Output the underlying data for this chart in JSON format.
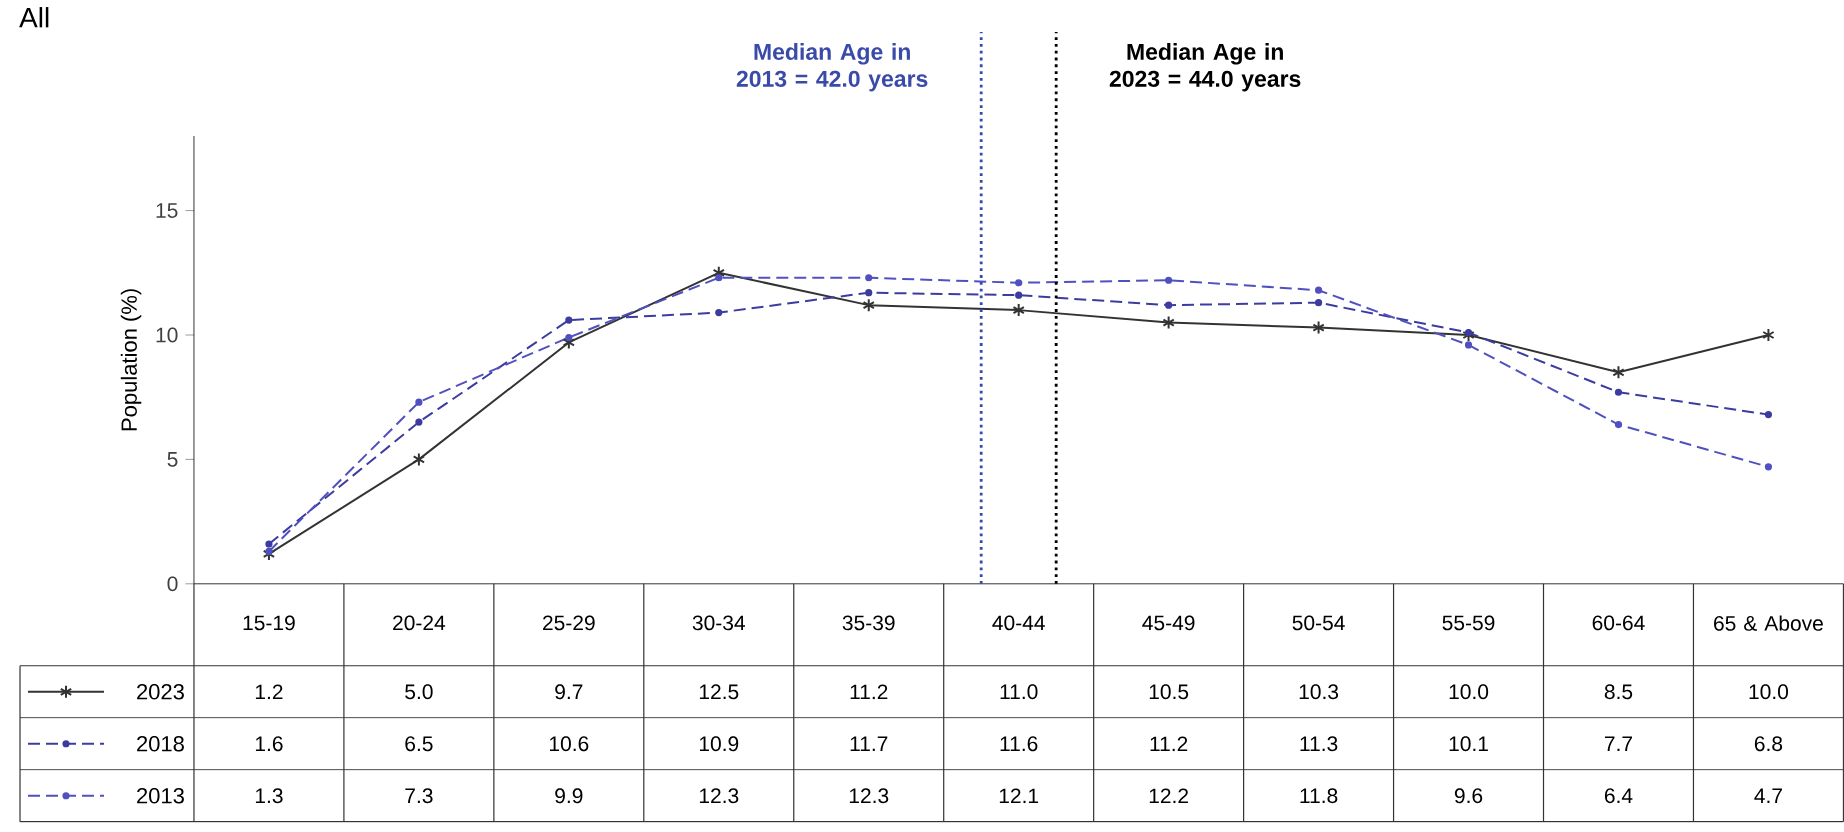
{
  "chart_data": {
    "type": "line",
    "title": "All",
    "ylabel": "Population (%)",
    "categories": [
      "15-19",
      "20-24",
      "25-29",
      "30-34",
      "35-39",
      "40-44",
      "45-49",
      "50-54",
      "55-59",
      "60-64",
      "65 & Above"
    ],
    "series": [
      {
        "name": "2023",
        "color": "#333333",
        "line_style": "solid",
        "marker": "cross",
        "values": [
          1.2,
          5.0,
          9.7,
          12.5,
          11.2,
          11.0,
          10.5,
          10.3,
          10.0,
          8.5,
          10.0
        ],
        "value_labels": [
          "1.2",
          "5.0",
          "9.7",
          "12.5",
          "11.2",
          "11.0",
          "10.5",
          "10.3",
          "10.0",
          "8.5",
          "10.0"
        ]
      },
      {
        "name": "2018",
        "color": "#3c3ca0",
        "line_style": "dashed",
        "marker": "circle",
        "values": [
          1.6,
          6.5,
          10.6,
          10.9,
          11.7,
          11.6,
          11.2,
          11.3,
          10.1,
          7.7,
          6.8
        ],
        "value_labels": [
          "1.6",
          "6.5",
          "10.6",
          "10.9",
          "11.7",
          "11.6",
          "11.2",
          "11.3",
          "10.1",
          "7.7",
          "6.8"
        ]
      },
      {
        "name": "2013",
        "color": "#5050c0",
        "line_style": "dashed",
        "marker": "circle",
        "values": [
          1.3,
          7.3,
          9.9,
          12.3,
          12.3,
          12.1,
          12.2,
          11.8,
          9.6,
          6.4,
          4.7
        ],
        "value_labels": [
          "1.3",
          "7.3",
          "9.9",
          "12.3",
          "12.3",
          "12.1",
          "12.2",
          "11.8",
          "9.6",
          "6.4",
          "4.7"
        ]
      }
    ],
    "ylim": [
      0,
      18
    ],
    "yticks": [
      0,
      5,
      10,
      15
    ],
    "ref_lines": [
      {
        "axis": "x",
        "value": "40-44",
        "label": "Median Age in 2013 = 42.0 years",
        "color": "#3a4aa8",
        "line_style": "dotted"
      },
      {
        "axis": "x",
        "value": "40-44",
        "label": "Median Age in 2023 = 44.0 years",
        "color": "#000000",
        "line_style": "dotted"
      }
    ],
    "legend": "bottom",
    "grid": false
  }
}
